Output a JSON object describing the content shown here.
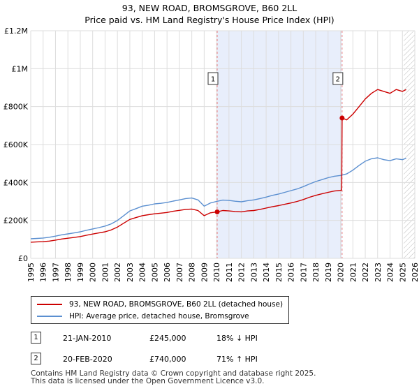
{
  "title_line1": "93, NEW ROAD, BROMSGROVE, B60 2LL",
  "title_line2": "Price paid vs. HM Land Registry's House Price Index (HPI)",
  "colors": {
    "price": "#cc0000",
    "hpi": "#5b8fd0",
    "shade": "#e8eefb",
    "grid": "#dddddd",
    "vline": "#e87c7c"
  },
  "chart_data": {
    "type": "line",
    "ylim": [
      0,
      1200000
    ],
    "xlim": [
      1995,
      2026
    ],
    "y_ticks": [
      0,
      200000,
      400000,
      600000,
      800000,
      1000000,
      1200000
    ],
    "y_tick_labels": [
      "£0",
      "£200K",
      "£400K",
      "£600K",
      "£800K",
      "£1M",
      "£1.2M"
    ],
    "x_ticks": [
      1995,
      1996,
      1997,
      1998,
      1999,
      2000,
      2001,
      2002,
      2003,
      2004,
      2005,
      2006,
      2007,
      2008,
      2009,
      2010,
      2011,
      2012,
      2013,
      2014,
      2015,
      2016,
      2017,
      2018,
      2019,
      2020,
      2021,
      2022,
      2023,
      2024,
      2025,
      2026
    ],
    "shaded_range": [
      2010.05,
      2020.13
    ],
    "hatched_from": 2025.1,
    "markers": [
      {
        "label": "1",
        "x": 2010.05,
        "y": 245000
      },
      {
        "label": "2",
        "x": 2020.13,
        "y": 740000
      }
    ],
    "series": [
      {
        "name": "93, NEW ROAD, BROMSGROVE, B60 2LL (detached house)",
        "x": [
          1995,
          1995.5,
          1996,
          1996.5,
          1997,
          1997.5,
          1998,
          1998.5,
          1999,
          1999.5,
          2000,
          2000.5,
          2001,
          2001.5,
          2002,
          2002.5,
          2003,
          2003.5,
          2004,
          2004.5,
          2005,
          2005.5,
          2006,
          2006.5,
          2007,
          2007.5,
          2008,
          2008.5,
          2009,
          2009.5,
          2010.05,
          2010.5,
          2011,
          2011.5,
          2012,
          2012.5,
          2013,
          2013.5,
          2014,
          2014.5,
          2015,
          2015.5,
          2016,
          2016.5,
          2017,
          2017.5,
          2018,
          2018.5,
          2019,
          2019.5,
          2020.0,
          2020.1,
          2020.13,
          2020.5,
          2021,
          2021.5,
          2022,
          2022.5,
          2023,
          2023.5,
          2024,
          2024.5,
          2025,
          2025.3
        ],
        "values": [
          85000,
          87000,
          88000,
          91000,
          96000,
          102000,
          106000,
          110000,
          115000,
          122000,
          128000,
          134000,
          140000,
          150000,
          165000,
          185000,
          205000,
          215000,
          225000,
          230000,
          235000,
          238000,
          242000,
          248000,
          253000,
          258000,
          260000,
          252000,
          225000,
          240000,
          245000,
          252000,
          250000,
          247000,
          245000,
          250000,
          252000,
          258000,
          265000,
          272000,
          278000,
          285000,
          292000,
          300000,
          310000,
          322000,
          332000,
          340000,
          348000,
          355000,
          358000,
          360000,
          740000,
          730000,
          760000,
          800000,
          840000,
          870000,
          890000,
          880000,
          870000,
          890000,
          880000,
          890000
        ]
      },
      {
        "name": "HPI: Average price, detached house, Bromsgrove",
        "x": [
          1995,
          1995.5,
          1996,
          1996.5,
          1997,
          1997.5,
          1998,
          1998.5,
          1999,
          1999.5,
          2000,
          2000.5,
          2001,
          2001.5,
          2002,
          2002.5,
          2003,
          2003.5,
          2004,
          2004.5,
          2005,
          2005.5,
          2006,
          2006.5,
          2007,
          2007.5,
          2008,
          2008.5,
          2009,
          2009.5,
          2010,
          2010.5,
          2011,
          2011.5,
          2012,
          2012.5,
          2013,
          2013.5,
          2014,
          2014.5,
          2015,
          2015.5,
          2016,
          2016.5,
          2017,
          2017.5,
          2018,
          2018.5,
          2019,
          2019.5,
          2020,
          2020.5,
          2021,
          2021.5,
          2022,
          2022.5,
          2023,
          2023.5,
          2024,
          2024.5,
          2025,
          2025.3
        ],
        "values": [
          103000,
          105000,
          107000,
          111000,
          117000,
          124000,
          129000,
          134000,
          140000,
          148000,
          155000,
          162000,
          170000,
          182000,
          200000,
          225000,
          250000,
          262000,
          275000,
          280000,
          287000,
          290000,
          295000,
          302000,
          308000,
          315000,
          318000,
          308000,
          275000,
          292000,
          300000,
          307000,
          305000,
          301000,
          298000,
          304000,
          308000,
          315000,
          323000,
          332000,
          339000,
          348000,
          357000,
          366000,
          378000,
          392000,
          405000,
          415000,
          425000,
          433000,
          437000,
          445000,
          465000,
          490000,
          512000,
          525000,
          530000,
          520000,
          515000,
          525000,
          520000,
          528000
        ]
      }
    ]
  },
  "legend": {
    "price_label": "93, NEW ROAD, BROMSGROVE, B60 2LL (detached house)",
    "hpi_label": "HPI: Average price, detached house, Bromsgrove"
  },
  "sales": [
    {
      "num": "1",
      "date": "21-JAN-2010",
      "price": "£245,000",
      "hpi": "18% ↓ HPI"
    },
    {
      "num": "2",
      "date": "20-FEB-2020",
      "price": "£740,000",
      "hpi": "71% ↑ HPI"
    }
  ],
  "footer": {
    "line1": "Contains HM Land Registry data © Crown copyright and database right 2025.",
    "line2": "This data is licensed under the Open Government Licence v3.0."
  }
}
